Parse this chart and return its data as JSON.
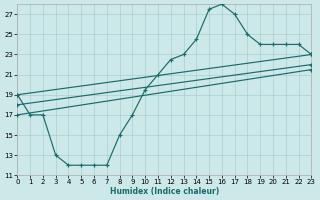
{
  "xlabel": "Humidex (Indice chaleur)",
  "bg_color": "#cce8e8",
  "line_color": "#1a6b6b",
  "grid_color": "#aacfcf",
  "xlim": [
    0,
    23
  ],
  "ylim": [
    11,
    28
  ],
  "xticks": [
    0,
    1,
    2,
    3,
    4,
    5,
    6,
    7,
    8,
    9,
    10,
    11,
    12,
    13,
    14,
    15,
    16,
    17,
    18,
    19,
    20,
    21,
    22,
    23
  ],
  "yticks": [
    11,
    13,
    15,
    17,
    19,
    21,
    23,
    25,
    27
  ],
  "lines": [
    {
      "x": [
        0,
        1,
        2,
        3,
        4,
        5,
        6,
        7,
        8,
        9,
        10,
        11,
        12,
        13,
        14,
        15,
        16,
        17,
        18,
        19,
        20,
        21,
        22,
        23
      ],
      "y": [
        19,
        17,
        17,
        13,
        12,
        12,
        12,
        12,
        15,
        17,
        19.5,
        21,
        22.5,
        23,
        24.5,
        27.5,
        28,
        27,
        25,
        24,
        24,
        24,
        24,
        23
      ]
    },
    {
      "x": [
        0,
        23
      ],
      "y": [
        19,
        23
      ]
    },
    {
      "x": [
        0,
        23
      ],
      "y": [
        18,
        22
      ]
    },
    {
      "x": [
        0,
        23
      ],
      "y": [
        17,
        21.5
      ]
    }
  ]
}
